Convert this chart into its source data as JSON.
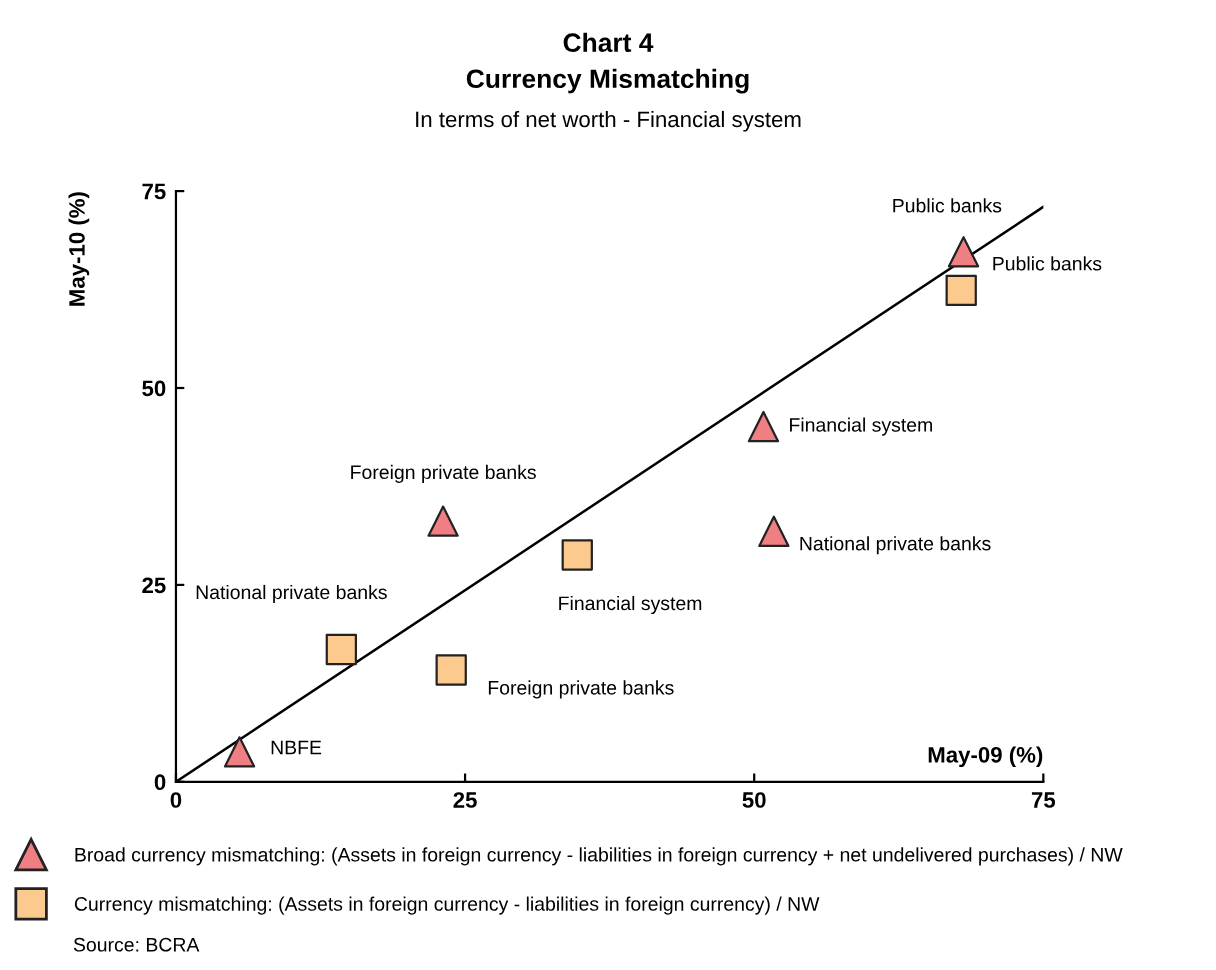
{
  "chart_data": {
    "type": "scatter",
    "title": "Chart 4\nCurrency Mismatching",
    "subtitle": "In terms of net worth - Financial system",
    "xlabel": "May-09 (%)",
    "ylabel": "May-10 (%)",
    "series": [
      {
        "name": "Broad currency mismatching: (Assets in foreign currency - liabilities in foreign currency + net undelivered purchases) / NW",
        "color": "#f07f84",
        "marker": "triangle",
        "x": [
          68.1,
          50.8,
          51.7,
          23.1,
          5.5
        ],
        "values": [
          67.3,
          45.1,
          31.8,
          33.1,
          3.8
        ]
      },
      {
        "name": "Currency mismatching: (Assets in foreign currency - liabilities in foreign currency) / NW",
        "color": "#fcca8f",
        "marker": "square",
        "x": [
          67.9,
          34.7,
          14.3,
          23.8
        ],
        "values": [
          62.4,
          28.8,
          16.8,
          14.2
        ]
      },
      {
        "type": "line",
        "color": "#000000",
        "marker": "none",
        "x": [
          0,
          75
        ],
        "values": [
          0,
          73
        ]
      }
    ],
    "annotations": [
      {
        "text": "Public banks",
        "x": 68.1,
        "y": 67.3
      },
      {
        "text": "Public banks",
        "x": 67.9,
        "y": 62.4
      },
      {
        "text": "Financial system",
        "x": 50.8,
        "y": 45.1
      },
      {
        "text": "National private banks",
        "x": 51.7,
        "y": 31.8
      },
      {
        "text": "Foreign private banks",
        "x": 23.1,
        "y": 33.1
      },
      {
        "text": "Financial system",
        "x": 34.7,
        "y": 28.8
      },
      {
        "text": "National private banks",
        "x": 14.3,
        "y": 16.8
      },
      {
        "text": "Foreign private banks",
        "x": 23.8,
        "y": 14.2
      },
      {
        "text": "NBFE",
        "x": 5.5,
        "y": 3.8
      },
      "Source: BCRA"
    ],
    "xlim": [
      0,
      75
    ],
    "ylim": [
      0,
      75
    ],
    "xticks": [
      0,
      25,
      50,
      75
    ],
    "yticks": [
      0,
      25,
      50,
      75
    ],
    "grid": false,
    "legend": "bottom"
  }
}
